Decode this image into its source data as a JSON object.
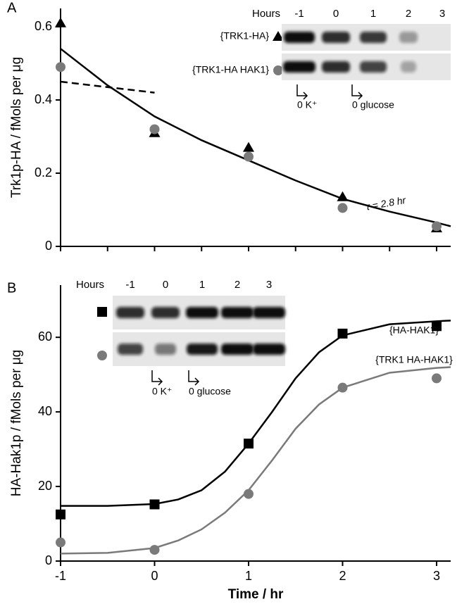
{
  "chart_data": [
    {
      "type": "scatter",
      "panel_label": "A",
      "ylabel": "Trk1p-HA / fMols per μg",
      "xlim": [
        -1,
        3.15
      ],
      "ylim": [
        0,
        0.65
      ],
      "xticks": [
        -1,
        -0.5,
        0,
        0.5,
        1,
        1.5,
        2,
        2.5,
        3
      ],
      "xtick_labels": false,
      "yticks": [
        0,
        0.2,
        0.4,
        0.6
      ],
      "series": [
        {
          "name": "{TRK1-HA}",
          "color": "#000000",
          "marker": "triangle",
          "x": [
            -1,
            0,
            1,
            2,
            3
          ],
          "values": [
            0.61,
            0.31,
            0.27,
            0.135,
            0.05
          ]
        },
        {
          "name": "{TRK1-HA HAK1}",
          "color": "#7a7a7a",
          "marker": "circle",
          "x": [
            -1,
            0,
            1,
            2,
            3
          ],
          "values": [
            0.49,
            0.32,
            0.245,
            0.105,
            0.055
          ]
        }
      ],
      "fits": [
        {
          "color": "#000000",
          "dash": false,
          "x": [
            -1,
            -0.5,
            0,
            0.5,
            1,
            1.5,
            2,
            2.5,
            3,
            3.15
          ],
          "values": [
            0.54,
            0.44,
            0.355,
            0.29,
            0.235,
            0.18,
            0.13,
            0.095,
            0.065,
            0.055
          ]
        },
        {
          "color": "#000000",
          "dash": true,
          "x": [
            -1,
            0
          ],
          "values": [
            0.45,
            0.42
          ]
        }
      ],
      "annotation": "τ = 2.8 hr",
      "inset": {
        "header": "Hours",
        "lanes": [
          "-1",
          "0",
          "1",
          "2",
          "3"
        ],
        "annotations": [
          "0 K⁺",
          "0 glucose"
        ]
      }
    },
    {
      "type": "scatter",
      "panel_label": "B",
      "ylabel": "HA-Hak1p / fMols per μg",
      "xlabel": "Time / hr",
      "xlim": [
        -1,
        3.15
      ],
      "ylim": [
        0,
        74
      ],
      "xticks": [
        -1,
        0,
        1,
        2,
        3
      ],
      "xtick_labels": true,
      "yticks": [
        0,
        20,
        40,
        60
      ],
      "series": [
        {
          "name": "{HA-HAK1}",
          "color": "#000000",
          "marker": "square",
          "x": [
            -1,
            0,
            1,
            2,
            3
          ],
          "values": [
            12.5,
            15.2,
            31.5,
            61,
            63
          ]
        },
        {
          "name": "{TRK1 HA-HAK1}",
          "color": "#7a7a7a",
          "marker": "circle",
          "x": [
            -1,
            0,
            1,
            2,
            3
          ],
          "values": [
            5,
            3,
            18,
            46.5,
            49
          ]
        }
      ],
      "fits": [
        {
          "color": "#000000",
          "dash": false,
          "x": [
            -1,
            -0.5,
            0,
            0.25,
            0.5,
            0.75,
            1,
            1.25,
            1.5,
            1.75,
            2,
            2.5,
            3,
            3.15
          ],
          "values": [
            14.8,
            14.8,
            15.3,
            16.5,
            19,
            24,
            31.5,
            40,
            49,
            56,
            60.5,
            63.5,
            64.3,
            64.5
          ]
        },
        {
          "color": "#7a7a7a",
          "dash": false,
          "x": [
            -1,
            -0.5,
            0,
            0.25,
            0.5,
            0.75,
            1,
            1.25,
            1.5,
            1.75,
            2,
            2.5,
            3,
            3.15
          ],
          "values": [
            2,
            2.2,
            3.5,
            5.5,
            8.5,
            13,
            19,
            27,
            35.5,
            42,
            46.5,
            50.5,
            51.8,
            52
          ]
        }
      ],
      "inset": {
        "header": "Hours",
        "lanes": [
          "-1",
          "0",
          "1",
          "2",
          "3"
        ],
        "annotations": [
          "0 K⁺",
          "0 glucose"
        ]
      }
    }
  ]
}
